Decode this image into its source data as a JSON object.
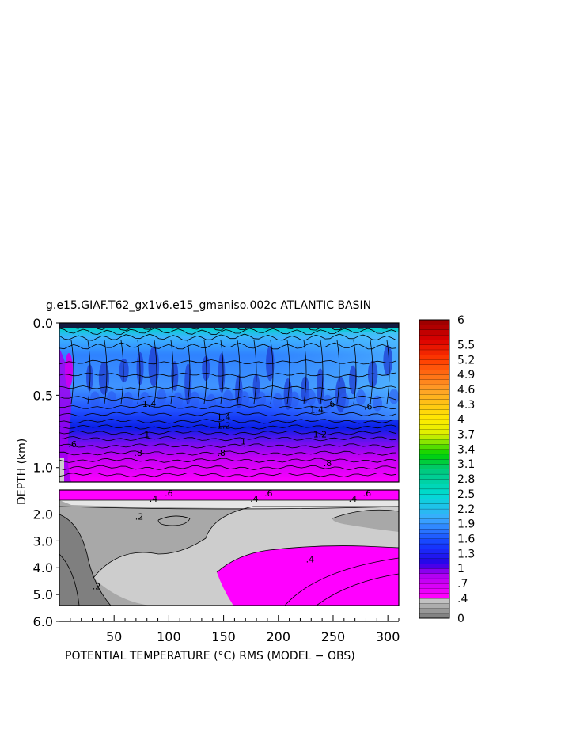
{
  "chart_data": {
    "type": "heatmap",
    "title": "g.e15.GIAF.T62_gx1v6.e15_gmaniso.002c ATLANTIC BASIN",
    "xlabel": "POTENTIAL TEMPERATURE (°C) RMS (MODEL − OBS)",
    "ylabel": "DEPTH (km)",
    "xlim": [
      0,
      310
    ],
    "x_ticks": [
      "50",
      "100",
      "150",
      "200",
      "250",
      "300"
    ],
    "x_tick_values": [
      50,
      100,
      150,
      200,
      250,
      300
    ],
    "upper_panel": {
      "ylim": [
        0.0,
        1.1
      ],
      "y_ticks": [
        "0.0",
        "0.5",
        "1.0"
      ],
      "y_tick_values": [
        0.0,
        0.5,
        1.0
      ]
    },
    "lower_panel": {
      "ylim": [
        1.1,
        6.0
      ],
      "y_ticks": [
        "2.0",
        "3.0",
        "4.0",
        "5.0",
        "6.0"
      ],
      "y_tick_values": [
        2.0,
        3.0,
        4.0,
        5.0,
        6.0
      ]
    },
    "contour_labels_upper": [
      {
        "text": ".6",
        "x": 12,
        "y": 0.86
      },
      {
        "text": "1",
        "x": 80,
        "y": 0.79
      },
      {
        "text": ".8",
        "x": 72,
        "y": 0.92
      },
      {
        "text": ".8",
        "x": 148,
        "y": 0.92
      },
      {
        "text": "1.4",
        "x": 82,
        "y": 0.58
      },
      {
        "text": "1.4",
        "x": 150,
        "y": 0.67
      },
      {
        "text": "1.4",
        "x": 235,
        "y": 0.62
      },
      {
        "text": "1.2",
        "x": 150,
        "y": 0.73
      },
      {
        "text": "1.2",
        "x": 238,
        "y": 0.79
      },
      {
        "text": "1",
        "x": 168,
        "y": 0.84
      },
      {
        "text": ".6",
        "x": 248,
        "y": 0.58
      },
      {
        "text": ".6",
        "x": 282,
        "y": 0.6
      },
      {
        "text": ".8",
        "x": 245,
        "y": 0.99
      }
    ],
    "contour_labels_lower": [
      {
        "text": ".6",
        "x": 100,
        "y": 1.33
      },
      {
        "text": ".6",
        "x": 191,
        "y": 1.33
      },
      {
        "text": ".6",
        "x": 281,
        "y": 1.33
      },
      {
        "text": ".4",
        "x": 86,
        "y": 1.55
      },
      {
        "text": ".4",
        "x": 178,
        "y": 1.55
      },
      {
        "text": ".4",
        "x": 268,
        "y": 1.55
      },
      {
        "text": ".2",
        "x": 73,
        "y": 2.2
      },
      {
        "text": ".2",
        "x": 34,
        "y": 4.8
      },
      {
        "text": ".4",
        "x": 229,
        "y": 3.8
      }
    ],
    "colorbar": {
      "min": 0,
      "max": 6,
      "step": 0.1,
      "labels": [
        "6",
        "5.5",
        "5.2",
        "4.9",
        "4.6",
        "4.3",
        "4",
        "3.7",
        "3.4",
        "3.1",
        "2.8",
        "2.5",
        "2.2",
        "1.9",
        "1.6",
        "1.3",
        "1",
        ".7",
        ".4",
        "0"
      ],
      "label_values": [
        6,
        5.5,
        5.2,
        4.9,
        4.6,
        4.3,
        4,
        3.7,
        3.4,
        3.1,
        2.8,
        2.5,
        2.2,
        1.9,
        1.6,
        1.3,
        1,
        0.7,
        0.4,
        0
      ]
    }
  },
  "colors": {
    "axis": "#000000",
    "gray_dark": "#7f7f7f",
    "gray_mid": "#a8a8a8",
    "gray_light": "#cdcdcd",
    "magenta": "#ff00ff",
    "violet": "#a000f0",
    "blue_deep": "#0a1ee6",
    "blue": "#2050ff",
    "blue_light": "#3c8cff",
    "sky": "#50b4ff",
    "cyan": "#00d2c8",
    "green": "#00c800",
    "yellow": "#ffff00",
    "orange": "#ff9600",
    "red": "#dc0000",
    "dark_red": "#8c0000"
  }
}
